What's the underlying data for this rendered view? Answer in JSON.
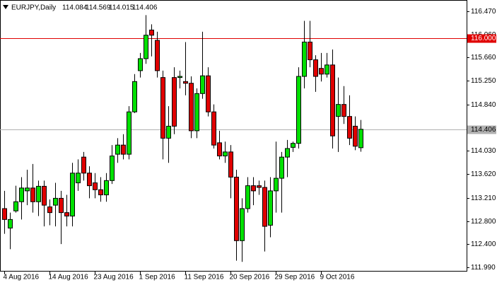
{
  "chart_data": {
    "type": "candlestick",
    "symbol": "EURJPY,Daily",
    "categories": [
      "4 Aug 2016",
      null,
      null,
      null,
      null,
      null,
      null,
      null,
      "14 Aug 2016",
      null,
      null,
      null,
      null,
      null,
      null,
      null,
      "23 Aug 2016",
      null,
      null,
      null,
      null,
      null,
      null,
      null,
      "1 Sep 2016",
      null,
      null,
      null,
      null,
      null,
      null,
      null,
      "11 Sep 2016",
      null,
      null,
      null,
      null,
      null,
      null,
      null,
      "20 Sep 2016",
      null,
      null,
      null,
      null,
      null,
      null,
      null,
      "29 Sep 2016",
      null,
      null,
      null,
      null,
      null,
      null,
      null,
      "9 Oct 2016",
      null,
      null,
      null,
      null,
      null,
      null,
      null
    ],
    "open": [
      113.02,
      112.68,
      112.98,
      113.14,
      113.33,
      113.38,
      113.14,
      113.41,
      113.05,
      113.08,
      113.2,
      112.95,
      112.89,
      113.47,
      113.92,
      113.64,
      113.47,
      113.35,
      113.26,
      113.51,
      113.97,
      114.13,
      113.97,
      114.71,
      115.43,
      115.64,
      116.14,
      115.96,
      115.31,
      114.25,
      115.31,
      115.31,
      115.24,
      115.21,
      114.38,
      115.03,
      115.34,
      114.71,
      114.17,
      113.94,
      114.01,
      113.57,
      112.46,
      113.02,
      113.42,
      113.42,
      113.39,
      112.73,
      113.33,
      113.55,
      113.92,
      114.09,
      114.16,
      115.33,
      115.93,
      115.62,
      115.47,
      115.37,
      115.53,
      114.63,
      114.84,
      114.63,
      114.46,
      114.084
    ],
    "high": [
      113.33,
      112.95,
      113.42,
      113.57,
      113.7,
      113.8,
      113.51,
      113.51,
      113.18,
      113.47,
      113.33,
      113.26,
      113.82,
      113.88,
      114.01,
      113.76,
      113.64,
      113.57,
      113.64,
      114.13,
      114.25,
      114.32,
      114.81,
      115.37,
      115.74,
      116.4,
      116.24,
      116.11,
      115.43,
      114.81,
      115.49,
      115.43,
      115.93,
      115.33,
      115.12,
      116.11,
      115.49,
      114.84,
      114.38,
      114.19,
      114.13,
      113.7,
      113.2,
      113.57,
      113.57,
      113.51,
      113.51,
      113.57,
      114.19,
      114.01,
      114.22,
      114.19,
      115.49,
      116.3,
      116.3,
      115.7,
      115.74,
      115.74,
      115.8,
      115.31,
      115.16,
      115.0,
      114.63,
      114.569
    ],
    "low": [
      112.58,
      112.31,
      112.95,
      112.83,
      113.08,
      112.95,
      112.89,
      112.71,
      112.73,
      112.71,
      112.4,
      112.71,
      112.71,
      113.33,
      113.51,
      113.2,
      113.2,
      113.14,
      113.14,
      113.45,
      113.82,
      113.88,
      113.88,
      114.69,
      115.31,
      115.55,
      115.68,
      115.31,
      113.88,
      113.82,
      114.32,
      115.12,
      115.0,
      114.25,
      114.25,
      114.94,
      114.63,
      114.07,
      113.88,
      113.82,
      113.2,
      112.11,
      112.09,
      112.95,
      113.08,
      113.26,
      112.27,
      112.52,
      112.95,
      112.95,
      113.57,
      114.01,
      114.07,
      115.12,
      115.49,
      115.06,
      115.24,
      115.31,
      114.07,
      114.01,
      114.5,
      114.13,
      114.04,
      114.015
    ],
    "close": [
      112.83,
      112.83,
      113.14,
      113.38,
      113.38,
      113.14,
      113.41,
      113.08,
      112.95,
      113.2,
      112.95,
      112.89,
      113.64,
      113.64,
      113.64,
      113.42,
      113.35,
      113.26,
      113.51,
      113.94,
      114.13,
      113.97,
      114.71,
      115.24,
      115.64,
      116.05,
      116.05,
      115.43,
      114.25,
      114.46,
      114.46,
      115.33,
      115.21,
      114.38,
      115.03,
      115.34,
      114.71,
      114.13,
      113.94,
      114.01,
      113.57,
      112.46,
      113.02,
      113.42,
      113.33,
      113.39,
      112.71,
      113.33,
      113.55,
      113.92,
      114.07,
      114.16,
      115.33,
      115.93,
      115.62,
      115.33,
      115.37,
      115.53,
      114.29,
      114.84,
      114.63,
      114.25,
      114.11,
      114.406
    ],
    "up_color": "#00e000",
    "down_color": "#e00000",
    "ylim": [
      111.92,
      116.64
    ],
    "yticks": [
      {
        "value": 116.47,
        "label": "116.470"
      },
      {
        "value": 116.06,
        "label": "116.060"
      },
      {
        "value": 115.66,
        "label": "115.660"
      },
      {
        "value": 115.25,
        "label": "115.250"
      },
      {
        "value": 114.84,
        "label": "114.840"
      },
      {
        "value": 114.03,
        "label": "114.030"
      },
      {
        "value": 113.62,
        "label": "113.620"
      },
      {
        "value": 113.21,
        "label": "113.210"
      },
      {
        "value": 112.8,
        "label": "112.800"
      },
      {
        "value": 112.4,
        "label": "112.400"
      },
      {
        "value": 111.99,
        "label": "111.990"
      }
    ],
    "hlines": [
      {
        "value": 116.0,
        "label": "116.000",
        "color": "#e00000"
      },
      {
        "value": 114.406,
        "label": "114.406",
        "color": "#b0b0b0"
      }
    ]
  }
}
